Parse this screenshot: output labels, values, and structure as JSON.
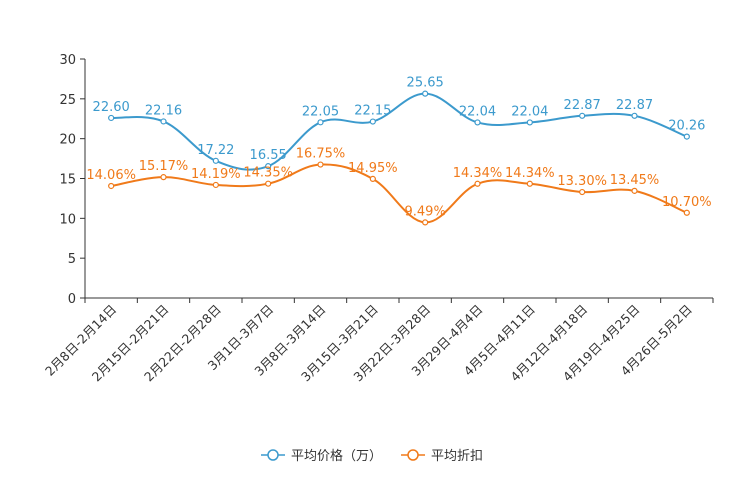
{
  "chart_data": {
    "type": "line",
    "categories": [
      "2月8日-2月14日",
      "2月15日-2月21日",
      "2月22日-2月28日",
      "3月1日-3月7日",
      "3月8日-3月14日",
      "3月15日-3月21日",
      "3月22日-3月28日",
      "3月29日-4月4日",
      "4月5日-4月11日",
      "4月12日-4月18日",
      "4月19日-4月25日",
      "4月26日-5月2日"
    ],
    "ylim": [
      0,
      30
    ],
    "yticks": [
      0,
      5,
      10,
      15,
      20,
      25,
      30
    ],
    "legend_position": "bottom-center",
    "series": [
      {
        "name": "平均价格（万）",
        "color": "#3c9acd",
        "values": [
          22.6,
          22.16,
          17.22,
          16.55,
          22.05,
          22.15,
          25.65,
          22.04,
          22.04,
          22.87,
          22.87,
          20.26
        ],
        "labels": [
          "22.60",
          "22.16",
          "17.22",
          "16.55",
          "22.05",
          "22.15",
          "25.65",
          "22.04",
          "22.04",
          "22.87",
          "22.87",
          "20.26"
        ]
      },
      {
        "name": "平均折扣",
        "color": "#f07a1a",
        "values": [
          14.06,
          15.17,
          14.19,
          14.35,
          16.75,
          14.95,
          9.49,
          14.34,
          14.34,
          13.3,
          13.45,
          10.7
        ],
        "labels": [
          "14.06%",
          "15.17%",
          "14.19%",
          "14.35%",
          "16.75%",
          "14.95%",
          "9.49%",
          "14.34%",
          "14.34%",
          "13.30%",
          "13.45%",
          "10.70%"
        ]
      }
    ]
  }
}
